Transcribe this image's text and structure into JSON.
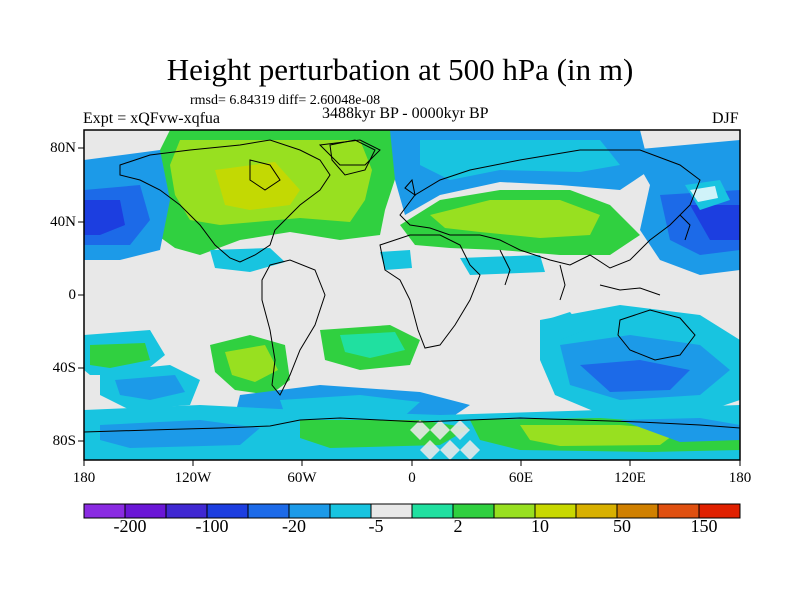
{
  "title": "Height perturbation at 500 hPa (in m)",
  "stats": "rmsd= 6.84319 diff= 2.60048e-08",
  "experiment": "Expt = xQFvw-xqfua",
  "period": "3488kyr BP - 0000kyr BP",
  "season": "DJF",
  "lat_ticks": [
    "80N",
    "40N",
    "0",
    "40S",
    "80S"
  ],
  "lon_ticks": [
    "180",
    "120W",
    "60W",
    "0",
    "60E",
    "120E",
    "180"
  ],
  "colorbar": {
    "colors": [
      "#8a2be2",
      "#6a16d6",
      "#4028d2",
      "#1c3ee0",
      "#1c6ae8",
      "#1c9ae8",
      "#18c4e0",
      "#e8e8e8",
      "#20e0a0",
      "#30d040",
      "#98e020",
      "#c8d800",
      "#d8b000",
      "#d08000",
      "#e05010",
      "#e02000"
    ],
    "labels": [
      "-200",
      "-100",
      "-20",
      "-5",
      "2",
      "10",
      "50",
      "150"
    ]
  }
}
